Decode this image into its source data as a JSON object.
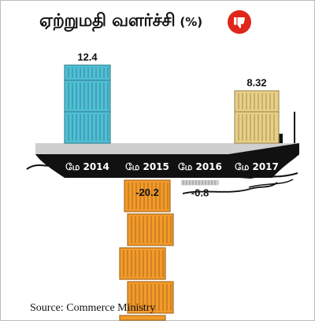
{
  "header": {
    "title": "ஏற்றுமதி வளர்ச்சி",
    "unit": "(%)",
    "badge_icon": "thumbs-down-icon",
    "badge_color": "#e0261b"
  },
  "footer": {
    "source": "Source: Commerce Ministry"
  },
  "colors": {
    "positive_early": "#4fc0d6",
    "positive_late": "#e8cf84",
    "negative_large": "#f39a2a",
    "negative_small": "#cfcfcf",
    "ship_deck": "#cfcfcf",
    "ship_hull": "#111111",
    "hull_text": "#ffffff",
    "value_text": "#111111",
    "water": "#111111"
  },
  "chart_data": {
    "type": "bar",
    "title": "ஏற்றுமதி வளர்ச்சி",
    "unit": "(%)",
    "categories": [
      "மே 2014",
      "மே 2015",
      "மே 2016",
      "மே 2017"
    ],
    "values": [
      12.4,
      -20.2,
      -0.8,
      8.32
    ],
    "value_labels": [
      "12.4",
      "-20.2",
      "-0.8",
      "8.32"
    ],
    "xlabel": "",
    "ylabel": "",
    "grid": false,
    "legend": "none"
  }
}
